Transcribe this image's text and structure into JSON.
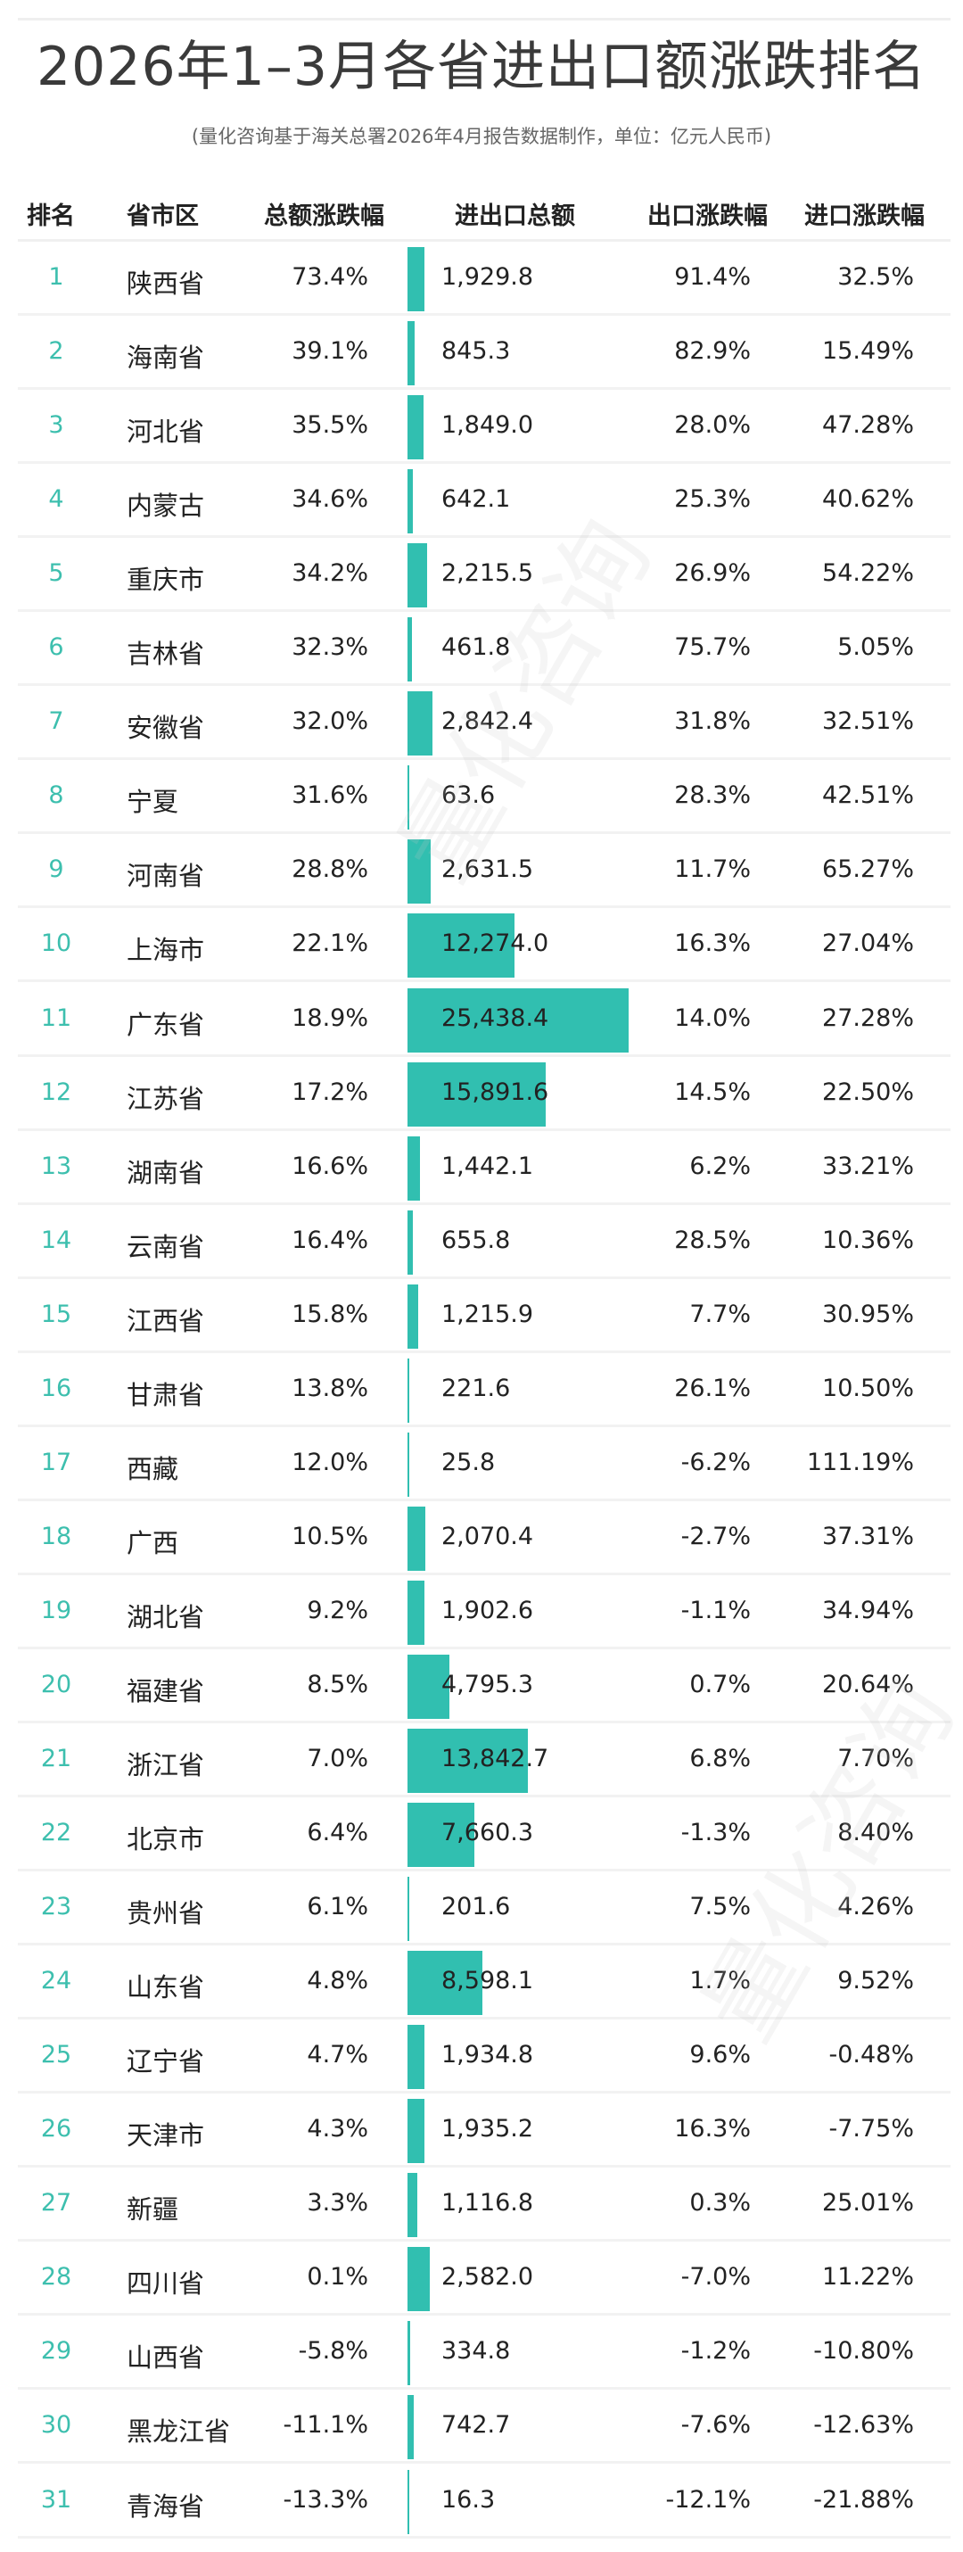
{
  "title": "2026年1–3月各省进出口额涨跌排名",
  "subtitle": "(量化咨询基于海关总署2026年4月报告数据制作，单位：亿元人民币)",
  "watermark": "量化咨询",
  "colors": {
    "bar": "#31bfb0",
    "rank": "#3dbfae",
    "text": "#222222",
    "divider": "#f0f0f0"
  },
  "headers": {
    "rank": "排名",
    "province": "省市区",
    "total_change": "总额涨跌幅",
    "total_value": "进出口总额",
    "export_change": "出口涨跌幅",
    "import_change": "进口涨跌幅"
  },
  "rows": [
    {
      "rank": "1",
      "province": "陕西省",
      "total_change": "73.4%",
      "total_value": "1,929.8",
      "export_change": "91.4%",
      "import_change": "32.5%",
      "value": 1929.8
    },
    {
      "rank": "2",
      "province": "海南省",
      "total_change": "39.1%",
      "total_value": "845.3",
      "export_change": "82.9%",
      "import_change": "15.49%",
      "value": 845.3
    },
    {
      "rank": "3",
      "province": "河北省",
      "total_change": "35.5%",
      "total_value": "1,849.0",
      "export_change": "28.0%",
      "import_change": "47.28%",
      "value": 1849.0
    },
    {
      "rank": "4",
      "province": "内蒙古",
      "total_change": "34.6%",
      "total_value": "642.1",
      "export_change": "25.3%",
      "import_change": "40.62%",
      "value": 642.1
    },
    {
      "rank": "5",
      "province": "重庆市",
      "total_change": "34.2%",
      "total_value": "2,215.5",
      "export_change": "26.9%",
      "import_change": "54.22%",
      "value": 2215.5
    },
    {
      "rank": "6",
      "province": "吉林省",
      "total_change": "32.3%",
      "total_value": "461.8",
      "export_change": "75.7%",
      "import_change": "5.05%",
      "value": 461.8
    },
    {
      "rank": "7",
      "province": "安徽省",
      "total_change": "32.0%",
      "total_value": "2,842.4",
      "export_change": "31.8%",
      "import_change": "32.51%",
      "value": 2842.4
    },
    {
      "rank": "8",
      "province": "宁夏",
      "total_change": "31.6%",
      "total_value": "63.6",
      "export_change": "28.3%",
      "import_change": "42.51%",
      "value": 63.6
    },
    {
      "rank": "9",
      "province": "河南省",
      "total_change": "28.8%",
      "total_value": "2,631.5",
      "export_change": "11.7%",
      "import_change": "65.27%",
      "value": 2631.5
    },
    {
      "rank": "10",
      "province": "上海市",
      "total_change": "22.1%",
      "total_value": "12,274.0",
      "export_change": "16.3%",
      "import_change": "27.04%",
      "value": 12274.0
    },
    {
      "rank": "11",
      "province": "广东省",
      "total_change": "18.9%",
      "total_value": "25,438.4",
      "export_change": "14.0%",
      "import_change": "27.28%",
      "value": 25438.4
    },
    {
      "rank": "12",
      "province": "江苏省",
      "total_change": "17.2%",
      "total_value": "15,891.6",
      "export_change": "14.5%",
      "import_change": "22.50%",
      "value": 15891.6
    },
    {
      "rank": "13",
      "province": "湖南省",
      "total_change": "16.6%",
      "total_value": "1,442.1",
      "export_change": "6.2%",
      "import_change": "33.21%",
      "value": 1442.1
    },
    {
      "rank": "14",
      "province": "云南省",
      "total_change": "16.4%",
      "total_value": "655.8",
      "export_change": "28.5%",
      "import_change": "10.36%",
      "value": 655.8
    },
    {
      "rank": "15",
      "province": "江西省",
      "total_change": "15.8%",
      "total_value": "1,215.9",
      "export_change": "7.7%",
      "import_change": "30.95%",
      "value": 1215.9
    },
    {
      "rank": "16",
      "province": "甘肃省",
      "total_change": "13.8%",
      "total_value": "221.6",
      "export_change": "26.1%",
      "import_change": "10.50%",
      "value": 221.6
    },
    {
      "rank": "17",
      "province": "西藏",
      "total_change": "12.0%",
      "total_value": "25.8",
      "export_change": "-6.2%",
      "import_change": "111.19%",
      "value": 25.8
    },
    {
      "rank": "18",
      "province": "广西",
      "total_change": "10.5%",
      "total_value": "2,070.4",
      "export_change": "-2.7%",
      "import_change": "37.31%",
      "value": 2070.4
    },
    {
      "rank": "19",
      "province": "湖北省",
      "total_change": "9.2%",
      "total_value": "1,902.6",
      "export_change": "-1.1%",
      "import_change": "34.94%",
      "value": 1902.6
    },
    {
      "rank": "20",
      "province": "福建省",
      "total_change": "8.5%",
      "total_value": "4,795.3",
      "export_change": "0.7%",
      "import_change": "20.64%",
      "value": 4795.3
    },
    {
      "rank": "21",
      "province": "浙江省",
      "total_change": "7.0%",
      "total_value": "13,842.7",
      "export_change": "6.8%",
      "import_change": "7.70%",
      "value": 13842.7
    },
    {
      "rank": "22",
      "province": "北京市",
      "total_change": "6.4%",
      "total_value": "7,660.3",
      "export_change": "-1.3%",
      "import_change": "8.40%",
      "value": 7660.3
    },
    {
      "rank": "23",
      "province": "贵州省",
      "total_change": "6.1%",
      "total_value": "201.6",
      "export_change": "7.5%",
      "import_change": "4.26%",
      "value": 201.6
    },
    {
      "rank": "24",
      "province": "山东省",
      "total_change": "4.8%",
      "total_value": "8,598.1",
      "export_change": "1.7%",
      "import_change": "9.52%",
      "value": 8598.1
    },
    {
      "rank": "25",
      "province": "辽宁省",
      "total_change": "4.7%",
      "total_value": "1,934.8",
      "export_change": "9.6%",
      "import_change": "-0.48%",
      "value": 1934.8
    },
    {
      "rank": "26",
      "province": "天津市",
      "total_change": "4.3%",
      "total_value": "1,935.2",
      "export_change": "16.3%",
      "import_change": "-7.75%",
      "value": 1935.2
    },
    {
      "rank": "27",
      "province": "新疆",
      "total_change": "3.3%",
      "total_value": "1,116.8",
      "export_change": "0.3%",
      "import_change": "25.01%",
      "value": 1116.8
    },
    {
      "rank": "28",
      "province": "四川省",
      "total_change": "0.1%",
      "total_value": "2,582.0",
      "export_change": "-7.0%",
      "import_change": "11.22%",
      "value": 2582.0
    },
    {
      "rank": "29",
      "province": "山西省",
      "total_change": "-5.8%",
      "total_value": "334.8",
      "export_change": "-1.2%",
      "import_change": "-10.80%",
      "value": 334.8
    },
    {
      "rank": "30",
      "province": "黑龙江省",
      "total_change": "-11.1%",
      "total_value": "742.7",
      "export_change": "-7.6%",
      "import_change": "-12.63%",
      "value": 742.7
    },
    {
      "rank": "31",
      "province": "青海省",
      "total_change": "-13.3%",
      "total_value": "16.3",
      "export_change": "-12.1%",
      "import_change": "-21.88%",
      "value": 16.3
    }
  ],
  "chart_data": {
    "type": "table",
    "title": "2026年1–3月各省进出口额涨跌排名",
    "subtitle": "(量化咨询基于海关总署2026年4月报告数据制作，单位：亿元人民币)",
    "columns": [
      "排名",
      "省市区",
      "总额涨跌幅",
      "进出口总额",
      "出口涨跌幅",
      "进口涨跌幅"
    ],
    "unit": "亿元人民币",
    "embedded_bar": {
      "column": "进出口总额",
      "max": 25438.4,
      "color": "#31bfb0"
    },
    "categories": [
      "陕西省",
      "海南省",
      "河北省",
      "内蒙古",
      "重庆市",
      "吉林省",
      "安徽省",
      "宁夏",
      "河南省",
      "上海市",
      "广东省",
      "江苏省",
      "湖南省",
      "云南省",
      "江西省",
      "甘肃省",
      "西藏",
      "广西",
      "湖北省",
      "福建省",
      "浙江省",
      "北京市",
      "贵州省",
      "山东省",
      "辽宁省",
      "天津市",
      "新疆",
      "四川省",
      "山西省",
      "黑龙江省",
      "青海省"
    ],
    "series": [
      {
        "name": "总额涨跌幅(%)",
        "values": [
          73.4,
          39.1,
          35.5,
          34.6,
          34.2,
          32.3,
          32.0,
          31.6,
          28.8,
          22.1,
          18.9,
          17.2,
          16.6,
          16.4,
          15.8,
          13.8,
          12.0,
          10.5,
          9.2,
          8.5,
          7.0,
          6.4,
          6.1,
          4.8,
          4.7,
          4.3,
          3.3,
          0.1,
          -5.8,
          -11.1,
          -13.3
        ]
      },
      {
        "name": "进出口总额(亿元)",
        "values": [
          1929.8,
          845.3,
          1849.0,
          642.1,
          2215.5,
          461.8,
          2842.4,
          63.6,
          2631.5,
          12274.0,
          25438.4,
          15891.6,
          1442.1,
          655.8,
          1215.9,
          221.6,
          25.8,
          2070.4,
          1902.6,
          4795.3,
          13842.7,
          7660.3,
          201.6,
          8598.1,
          1934.8,
          1935.2,
          1116.8,
          2582.0,
          334.8,
          742.7,
          16.3
        ]
      },
      {
        "name": "出口涨跌幅(%)",
        "values": [
          91.4,
          82.9,
          28.0,
          25.3,
          26.9,
          75.7,
          31.8,
          28.3,
          11.7,
          16.3,
          14.0,
          14.5,
          6.2,
          28.5,
          7.7,
          26.1,
          -6.2,
          -2.7,
          -1.1,
          0.7,
          6.8,
          -1.3,
          7.5,
          1.7,
          9.6,
          16.3,
          0.3,
          -7.0,
          -1.2,
          -7.6,
          -12.1
        ]
      },
      {
        "name": "进口涨跌幅(%)",
        "values": [
          32.5,
          15.49,
          47.28,
          40.62,
          54.22,
          5.05,
          32.51,
          42.51,
          65.27,
          27.04,
          27.28,
          22.5,
          33.21,
          10.36,
          30.95,
          10.5,
          111.19,
          37.31,
          34.94,
          20.64,
          7.7,
          8.4,
          4.26,
          9.52,
          -0.48,
          -7.75,
          25.01,
          11.22,
          -10.8,
          -12.63,
          -21.88
        ]
      }
    ]
  }
}
